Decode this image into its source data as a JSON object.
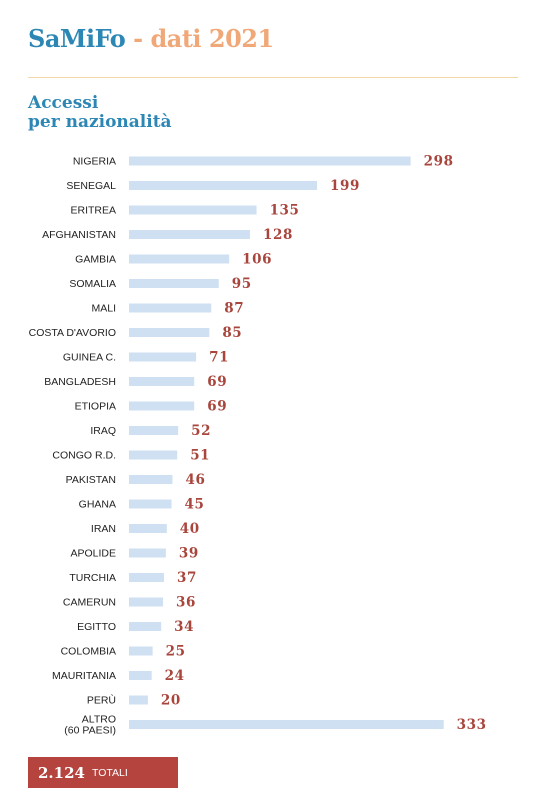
{
  "header": {
    "brand": "SaMiFo",
    "separator": " - ",
    "rest": "dati 2021"
  },
  "subtitle": {
    "line1": "Accessi",
    "line2": "per nazionalità"
  },
  "colors": {
    "brand": "#2d87b4",
    "accent": "#f0a878",
    "bar": "#cfe0f2",
    "value_text": "#a8453c",
    "total_box": "#b5443e"
  },
  "chart_data": {
    "type": "bar",
    "orientation": "horizontal",
    "title": "Accessi per nazionalità",
    "categories": [
      [
        "NIGERIA"
      ],
      [
        "SENEGAL"
      ],
      [
        "ERITREA"
      ],
      [
        "AFGHANISTAN"
      ],
      [
        "GAMBIA"
      ],
      [
        "SOMALIA"
      ],
      [
        "MALI"
      ],
      [
        "COSTA D'AVORIO"
      ],
      [
        "GUINEA C."
      ],
      [
        "BANGLADESH"
      ],
      [
        "ETIOPIA"
      ],
      [
        "IRAQ"
      ],
      [
        "CONGO R.D."
      ],
      [
        "PAKISTAN"
      ],
      [
        "GHANA"
      ],
      [
        "IRAN"
      ],
      [
        "APOLIDE"
      ],
      [
        "TURCHIA"
      ],
      [
        "CAMERUN"
      ],
      [
        "EGITTO"
      ],
      [
        "COLOMBIA"
      ],
      [
        "MAURITANIA"
      ],
      [
        "PERÙ"
      ],
      [
        "ALTRO",
        "(60 PAESI)"
      ]
    ],
    "values": [
      298,
      199,
      135,
      128,
      106,
      95,
      87,
      85,
      71,
      69,
      69,
      52,
      51,
      46,
      45,
      40,
      39,
      37,
      36,
      34,
      25,
      24,
      20,
      333
    ],
    "data_labels": true,
    "legend": "none",
    "grid": false
  },
  "total": {
    "value": "2.124",
    "label": "TOTALI"
  }
}
